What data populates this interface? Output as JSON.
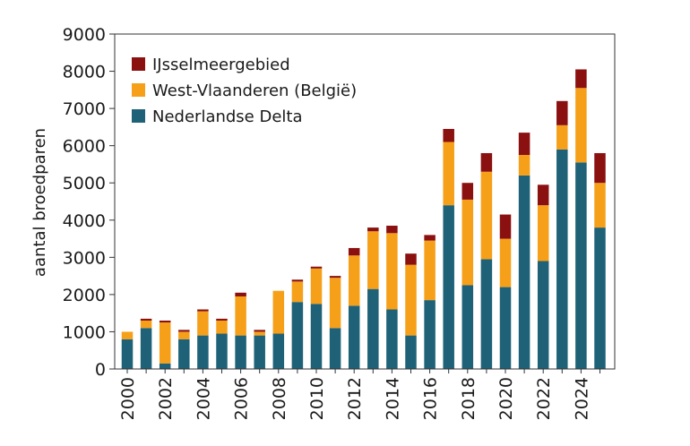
{
  "chart_data": {
    "type": "bar",
    "stacked": true,
    "title": "",
    "xlabel": "",
    "ylabel": "aantal broedparen",
    "ylim": [
      0,
      9000
    ],
    "yticks": [
      0,
      1000,
      2000,
      3000,
      4000,
      5000,
      6000,
      7000,
      8000,
      9000
    ],
    "xtick_labels": [
      "2000",
      "2002",
      "2004",
      "2006",
      "2008",
      "2010",
      "2012",
      "2014",
      "2016",
      "2018",
      "2020",
      "2022",
      "2024"
    ],
    "categories": [
      "2000",
      "2001",
      "2002",
      "2003",
      "2004",
      "2005",
      "2006",
      "2007",
      "2008",
      "2009",
      "2010",
      "2011",
      "2012",
      "2013",
      "2014",
      "2015",
      "2016",
      "2017",
      "2018",
      "2019",
      "2020",
      "2021",
      "2022",
      "2023",
      "2024",
      "2025"
    ],
    "grid": false,
    "legend_position": "top-left",
    "series": [
      {
        "name": "Nederlandse Delta",
        "color": "#1f6278",
        "values": [
          800,
          1100,
          150,
          800,
          900,
          950,
          900,
          900,
          950,
          1800,
          1750,
          1100,
          1700,
          2150,
          1600,
          900,
          1850,
          4400,
          2250,
          2950,
          2200,
          5200,
          2900,
          5900,
          5550,
          3800
        ]
      },
      {
        "name": "West-Vlaanderen (België)",
        "color": "#f6a01a",
        "values": [
          200,
          200,
          1100,
          200,
          650,
          350,
          1050,
          100,
          1150,
          550,
          950,
          1350,
          1350,
          1550,
          2050,
          1900,
          1600,
          1700,
          2300,
          2350,
          1300,
          550,
          1500,
          650,
          2000,
          1200
        ]
      },
      {
        "name": "IJsselmeergebied",
        "color": "#8b1010",
        "values": [
          0,
          50,
          50,
          50,
          50,
          50,
          100,
          50,
          0,
          50,
          50,
          50,
          200,
          100,
          200,
          300,
          150,
          350,
          450,
          500,
          650,
          600,
          550,
          650,
          500,
          800
        ]
      }
    ]
  }
}
